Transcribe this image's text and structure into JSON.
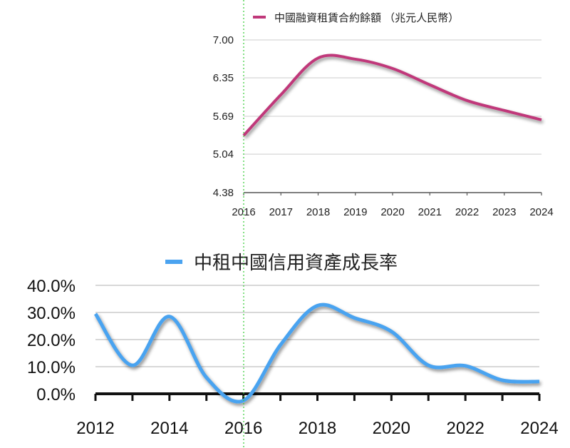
{
  "chart_data": [
    {
      "type": "line",
      "title": "",
      "legend": "中國融資租賃合約餘額 （兆元人民幣）",
      "legend_position": "top",
      "color": "#c0387a",
      "x": [
        "2016",
        "2017",
        "2018",
        "2019",
        "2020",
        "2021",
        "2022",
        "2023",
        "2024"
      ],
      "values": [
        5.36,
        6.06,
        6.69,
        6.67,
        6.51,
        6.23,
        5.96,
        5.79,
        5.63
      ],
      "yticks": [
        "4.38",
        "5.04",
        "5.69",
        "6.35",
        "7.00"
      ],
      "ylim": [
        4.38,
        7.0
      ],
      "grid": true,
      "xlabel": "",
      "ylabel": ""
    },
    {
      "type": "line",
      "title": "",
      "legend": "中租中國信用資產成長率",
      "legend_position": "top",
      "color": "#4aa3f0",
      "x": [
        "2012",
        "2013",
        "2014",
        "2015",
        "2016",
        "2017",
        "2018",
        "2019",
        "2020",
        "2021",
        "2022",
        "2023",
        "2024"
      ],
      "xticks": [
        "2012",
        "2014",
        "2016",
        "2018",
        "2020",
        "2022",
        "2024"
      ],
      "values": [
        29.5,
        10.5,
        28.5,
        6.0,
        -2.5,
        18.0,
        32.5,
        28.0,
        23.0,
        10.5,
        10.3,
        5.0,
        4.5
      ],
      "yticks": [
        "0.0%",
        "10.0%",
        "20.0%",
        "30.0%",
        "40.0%"
      ],
      "ylim": [
        0,
        40
      ],
      "grid": true,
      "xlabel": "",
      "ylabel": ""
    }
  ],
  "marker_line": {
    "x": "2016",
    "color": "#33cc33"
  }
}
